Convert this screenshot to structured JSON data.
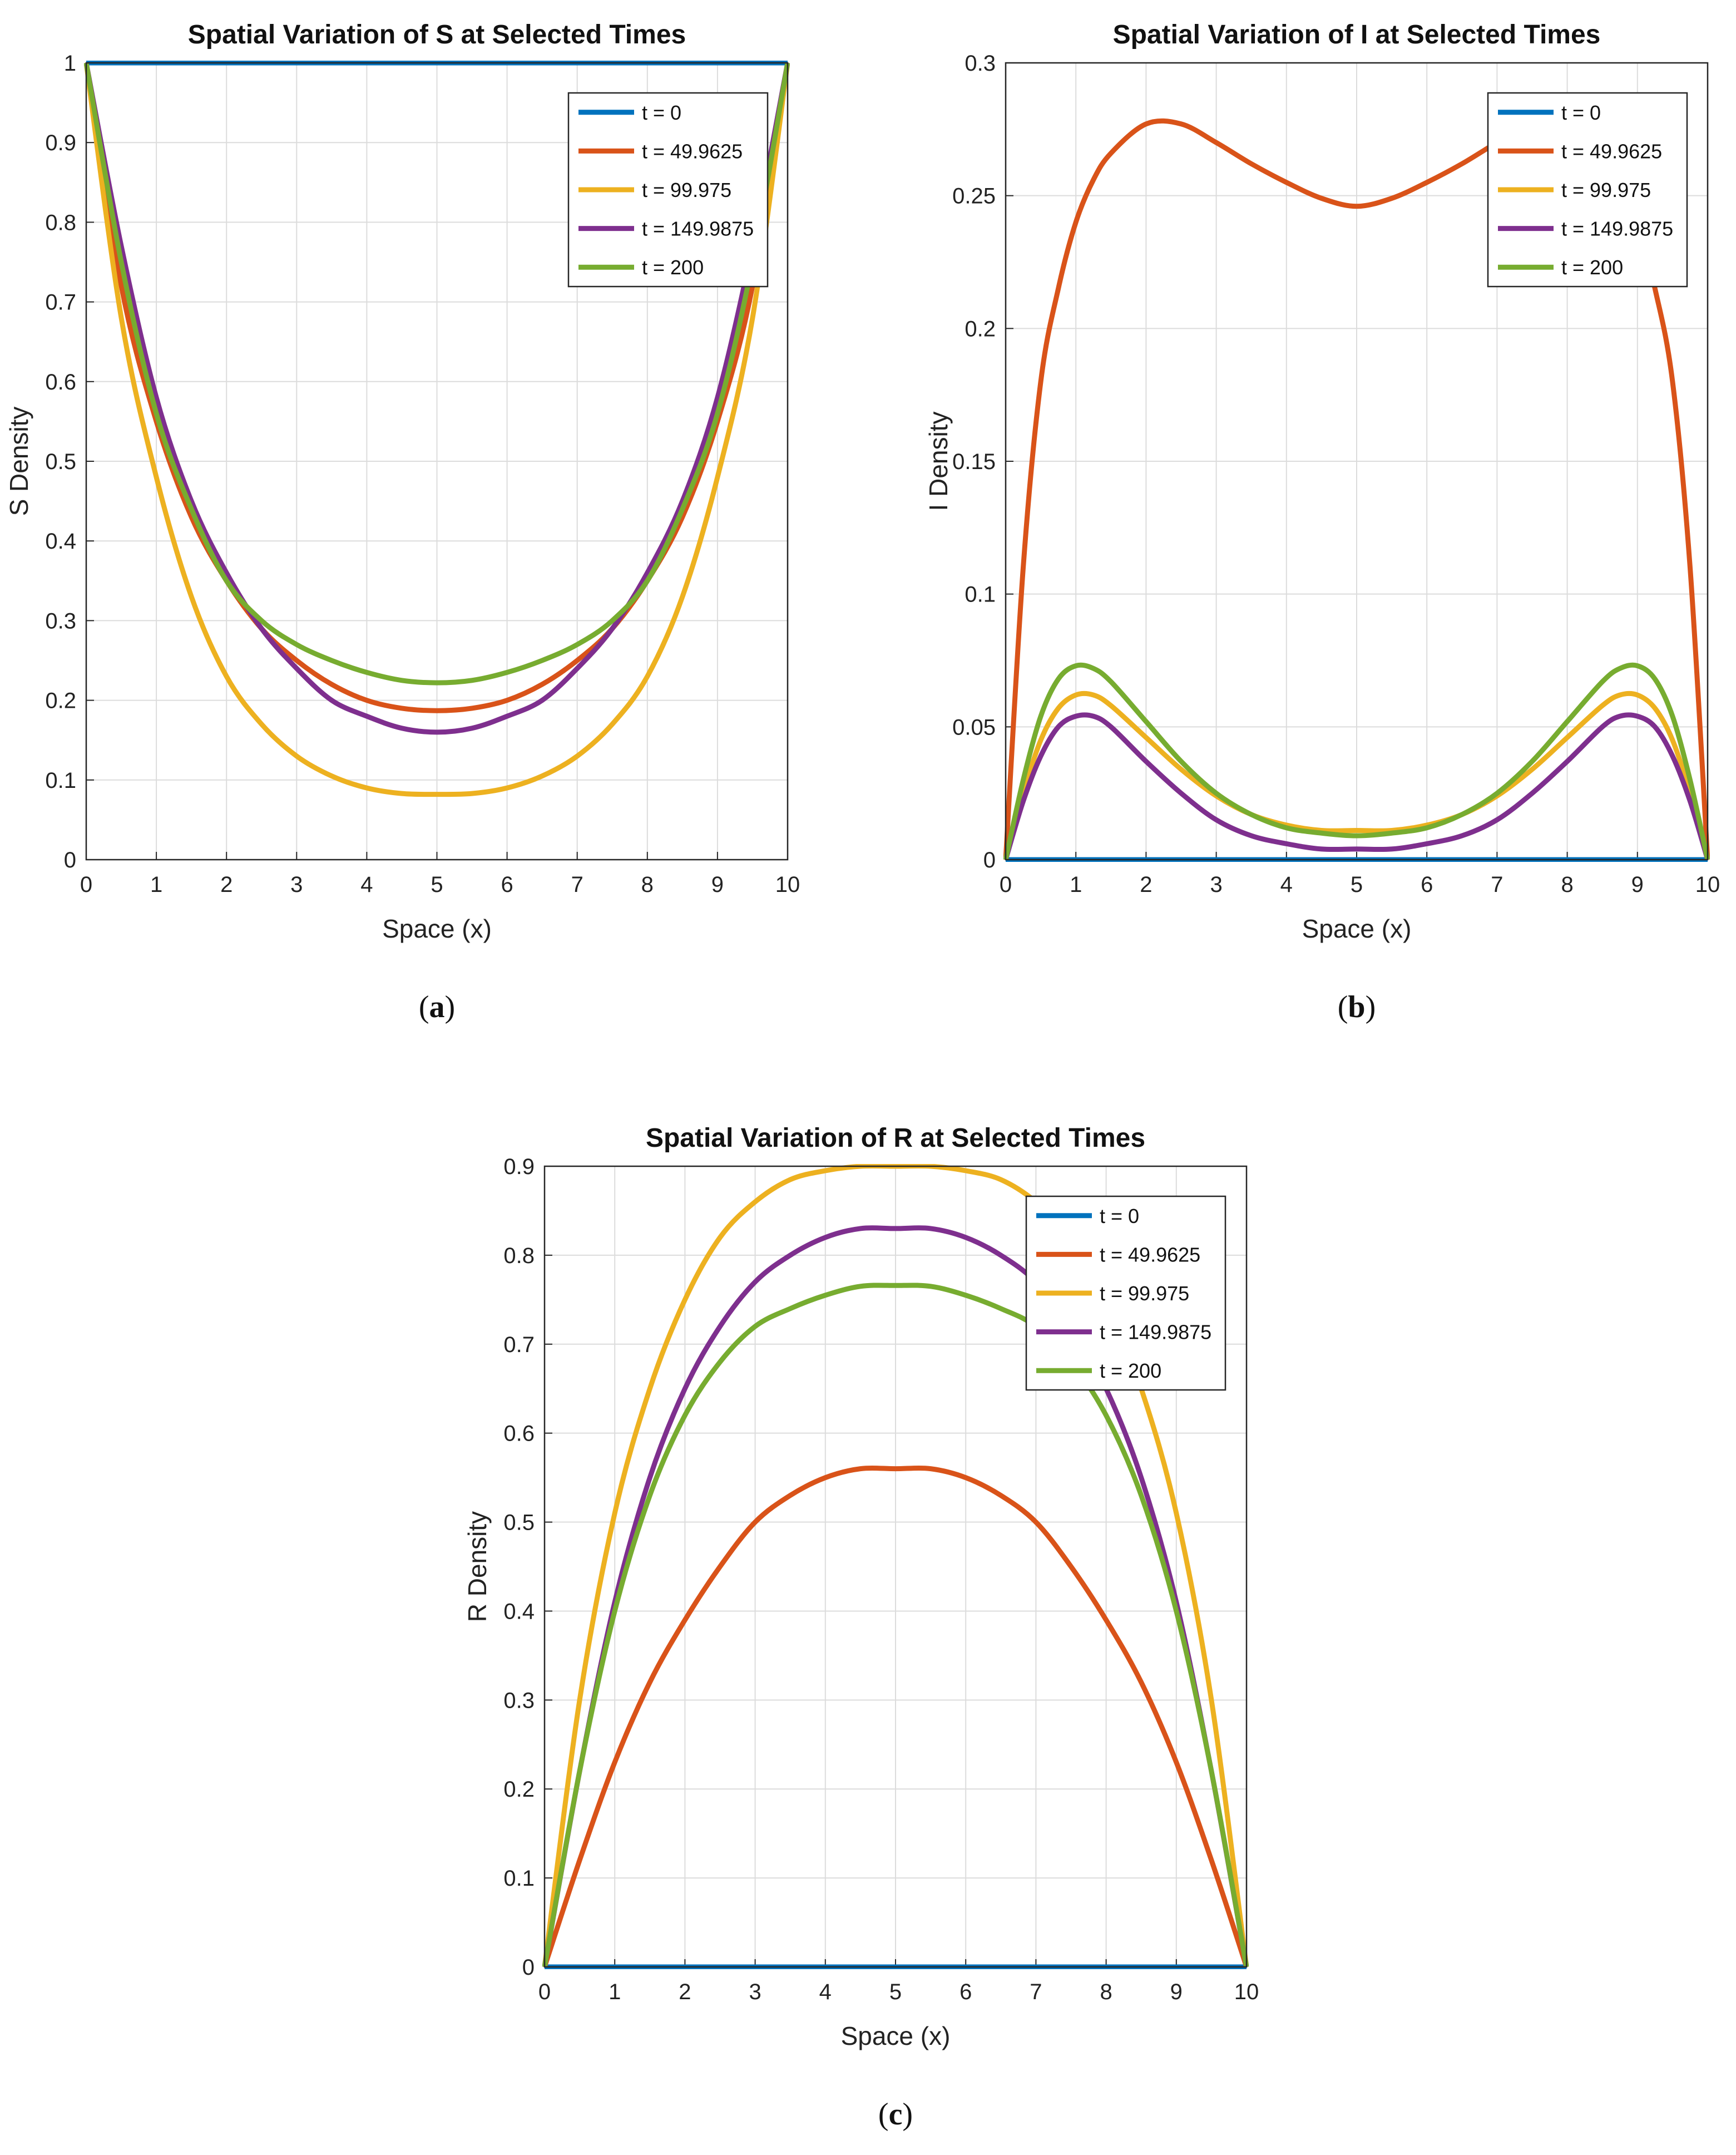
{
  "chart_data": [
    {
      "type": "line",
      "panel": "a",
      "title": "Spatial Variation of S at Selected Times",
      "xlabel": "Space (x)",
      "ylabel": "S Density",
      "xlim": [
        0,
        10
      ],
      "ylim": [
        0,
        1
      ],
      "xticks": [
        "0",
        "1",
        "2",
        "3",
        "4",
        "5",
        "6",
        "7",
        "8",
        "9",
        "10"
      ],
      "yticks": [
        "0",
        "0.1",
        "0.2",
        "0.3",
        "0.4",
        "0.5",
        "0.6",
        "0.7",
        "0.8",
        "0.9",
        "1"
      ],
      "grid": true,
      "legend_position": "top-right",
      "caption": "a",
      "x": [
        0,
        0.5,
        1,
        1.5,
        2,
        2.5,
        3,
        3.5,
        4,
        4.5,
        5,
        5.5,
        6,
        6.5,
        7,
        7.5,
        8,
        8.5,
        9,
        9.5,
        10
      ],
      "series": [
        {
          "name": "t = 0",
          "color": "#0072BD",
          "values": [
            1,
            1,
            1,
            1,
            1,
            1,
            1,
            1,
            1,
            1,
            1,
            1,
            1,
            1,
            1,
            1,
            1,
            1,
            1,
            1,
            1
          ]
        },
        {
          "name": "t = 49.9625",
          "color": "#D95319",
          "values": [
            1,
            0.72,
            0.55,
            0.43,
            0.35,
            0.29,
            0.25,
            0.22,
            0.2,
            0.19,
            0.187,
            0.19,
            0.2,
            0.22,
            0.25,
            0.29,
            0.35,
            0.43,
            0.55,
            0.72,
            1
          ]
        },
        {
          "name": "t = 99.975",
          "color": "#EDB120",
          "values": [
            1,
            0.68,
            0.48,
            0.33,
            0.23,
            0.17,
            0.13,
            0.105,
            0.09,
            0.083,
            0.082,
            0.083,
            0.09,
            0.105,
            0.13,
            0.17,
            0.23,
            0.33,
            0.48,
            0.68,
            1
          ]
        },
        {
          "name": "t = 149.9875",
          "color": "#7E2F8E",
          "values": [
            1,
            0.77,
            0.58,
            0.45,
            0.36,
            0.29,
            0.24,
            0.2,
            0.18,
            0.165,
            0.16,
            0.165,
            0.18,
            0.2,
            0.24,
            0.29,
            0.36,
            0.45,
            0.58,
            0.77,
            1
          ]
        },
        {
          "name": "t = 200",
          "color": "#77AC30",
          "values": [
            1,
            0.75,
            0.56,
            0.44,
            0.35,
            0.3,
            0.27,
            0.25,
            0.235,
            0.225,
            0.222,
            0.225,
            0.235,
            0.25,
            0.27,
            0.3,
            0.35,
            0.44,
            0.56,
            0.75,
            1
          ]
        }
      ]
    },
    {
      "type": "line",
      "panel": "b",
      "title": "Spatial Variation of I at Selected Times",
      "xlabel": "Space (x)",
      "ylabel": "I Density",
      "xlim": [
        0,
        10
      ],
      "ylim": [
        0,
        0.3
      ],
      "xticks": [
        "0",
        "1",
        "2",
        "3",
        "4",
        "5",
        "6",
        "7",
        "8",
        "9",
        "10"
      ],
      "yticks": [
        "0",
        "0.05",
        "0.1",
        "0.15",
        "0.2",
        "0.25",
        "0.3"
      ],
      "grid": true,
      "legend_position": "top-right",
      "caption": "b",
      "x": [
        0,
        0.25,
        0.5,
        0.75,
        1,
        1.25,
        1.5,
        2,
        2.5,
        3,
        3.5,
        4,
        4.5,
        5,
        5.5,
        6,
        6.5,
        7,
        7.5,
        8,
        8.5,
        8.75,
        9,
        9.25,
        9.5,
        9.75,
        10
      ],
      "series": [
        {
          "name": "t = 0",
          "color": "#0072BD",
          "values": [
            0,
            0,
            0,
            0,
            0,
            0,
            0,
            0,
            0,
            0,
            0,
            0,
            0,
            0,
            0,
            0,
            0,
            0,
            0,
            0,
            0,
            0,
            0,
            0,
            0,
            0,
            0
          ]
        },
        {
          "name": "t = 49.9625",
          "color": "#D95319",
          "values": [
            0,
            0.11,
            0.18,
            0.215,
            0.24,
            0.256,
            0.266,
            0.277,
            0.277,
            0.27,
            0.262,
            0.255,
            0.249,
            0.246,
            0.249,
            0.255,
            0.262,
            0.27,
            0.277,
            0.277,
            0.266,
            0.256,
            0.24,
            0.215,
            0.18,
            0.11,
            0
          ]
        },
        {
          "name": "t = 99.975",
          "color": "#EDB120",
          "values": [
            0,
            0.025,
            0.045,
            0.057,
            0.062,
            0.062,
            0.058,
            0.046,
            0.034,
            0.024,
            0.017,
            0.013,
            0.011,
            0.011,
            0.011,
            0.013,
            0.017,
            0.024,
            0.034,
            0.046,
            0.058,
            0.062,
            0.062,
            0.057,
            0.045,
            0.025,
            0
          ]
        },
        {
          "name": "t = 149.9875",
          "color": "#7E2F8E",
          "values": [
            0,
            0.022,
            0.039,
            0.05,
            0.054,
            0.054,
            0.05,
            0.037,
            0.025,
            0.015,
            0.009,
            0.006,
            0.004,
            0.004,
            0.004,
            0.006,
            0.009,
            0.015,
            0.025,
            0.037,
            0.05,
            0.054,
            0.054,
            0.05,
            0.039,
            0.022,
            0
          ]
        },
        {
          "name": "t = 200",
          "color": "#77AC30",
          "values": [
            0,
            0.03,
            0.054,
            0.068,
            0.073,
            0.072,
            0.067,
            0.052,
            0.037,
            0.025,
            0.017,
            0.012,
            0.01,
            0.009,
            0.01,
            0.012,
            0.017,
            0.025,
            0.037,
            0.052,
            0.067,
            0.072,
            0.073,
            0.068,
            0.054,
            0.03,
            0
          ]
        }
      ]
    },
    {
      "type": "line",
      "panel": "c",
      "title": "Spatial Variation of R at Selected Times",
      "xlabel": "Space (x)",
      "ylabel": "R Density",
      "xlim": [
        0,
        10
      ],
      "ylim": [
        0,
        0.9
      ],
      "xticks": [
        "0",
        "1",
        "2",
        "3",
        "4",
        "5",
        "6",
        "7",
        "8",
        "9",
        "10"
      ],
      "yticks": [
        "0",
        "0.1",
        "0.2",
        "0.3",
        "0.4",
        "0.5",
        "0.6",
        "0.7",
        "0.8",
        "0.9"
      ],
      "grid": true,
      "legend_position": "top-right",
      "caption": "c",
      "x": [
        0,
        0.5,
        1,
        1.5,
        2,
        2.5,
        3,
        3.5,
        4,
        4.5,
        5,
        5.5,
        6,
        6.5,
        7,
        7.5,
        8,
        8.5,
        9,
        9.5,
        10
      ],
      "series": [
        {
          "name": "t = 0",
          "color": "#0072BD",
          "values": [
            0,
            0,
            0,
            0,
            0,
            0,
            0,
            0,
            0,
            0,
            0,
            0,
            0,
            0,
            0,
            0,
            0,
            0,
            0,
            0,
            0
          ]
        },
        {
          "name": "t = 49.9625",
          "color": "#D95319",
          "values": [
            0,
            0.12,
            0.23,
            0.32,
            0.39,
            0.45,
            0.5,
            0.53,
            0.55,
            0.56,
            0.56,
            0.56,
            0.55,
            0.53,
            0.5,
            0.45,
            0.39,
            0.32,
            0.23,
            0.12,
            0
          ]
        },
        {
          "name": "t = 99.975",
          "color": "#EDB120",
          "values": [
            0,
            0.3,
            0.51,
            0.65,
            0.75,
            0.82,
            0.86,
            0.885,
            0.895,
            0.9,
            0.9,
            0.9,
            0.895,
            0.885,
            0.86,
            0.82,
            0.75,
            0.65,
            0.51,
            0.3,
            0
          ]
        },
        {
          "name": "t = 149.9875",
          "color": "#7E2F8E",
          "values": [
            0,
            0.22,
            0.41,
            0.55,
            0.65,
            0.72,
            0.77,
            0.8,
            0.82,
            0.83,
            0.83,
            0.83,
            0.82,
            0.8,
            0.77,
            0.72,
            0.65,
            0.55,
            0.41,
            0.22,
            0
          ]
        },
        {
          "name": "t = 200",
          "color": "#77AC30",
          "values": [
            0,
            0.22,
            0.4,
            0.53,
            0.62,
            0.68,
            0.72,
            0.74,
            0.755,
            0.765,
            0.766,
            0.765,
            0.755,
            0.74,
            0.72,
            0.68,
            0.62,
            0.53,
            0.4,
            0.22,
            0
          ]
        }
      ]
    }
  ]
}
